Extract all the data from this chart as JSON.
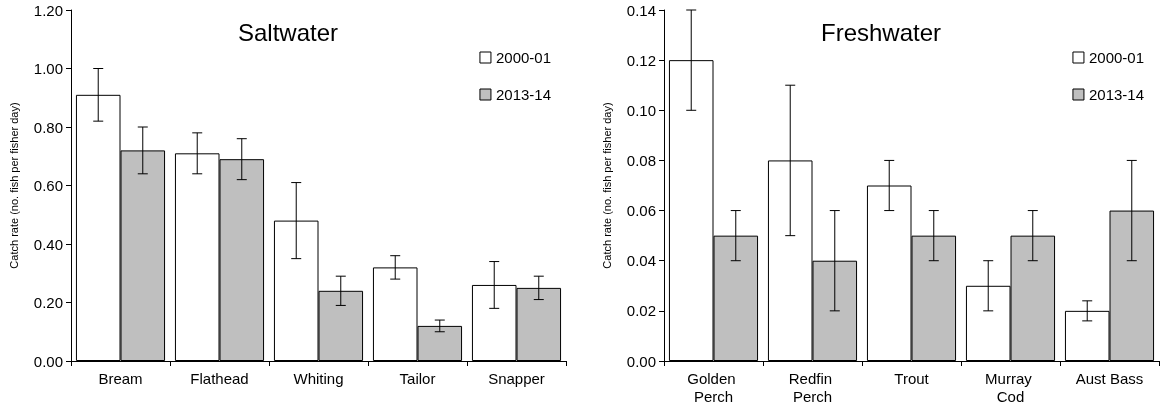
{
  "chart_data": [
    {
      "type": "bar",
      "title": "Saltwater",
      "ylabel": "Catch rate (no. fish per fisher day)",
      "categories": [
        "Bream",
        "Flathead",
        "Whiting",
        "Tailor",
        "Snapper"
      ],
      "series": [
        {
          "name": "2000-01",
          "color": "#ffffff",
          "values": [
            0.91,
            0.71,
            0.48,
            0.32,
            0.26
          ],
          "errors": [
            [
              0.82,
              1.0
            ],
            [
              0.64,
              0.78
            ],
            [
              0.35,
              0.61
            ],
            [
              0.28,
              0.36
            ],
            [
              0.18,
              0.34
            ]
          ]
        },
        {
          "name": "2013-14",
          "color": "#bfbfbf",
          "values": [
            0.72,
            0.69,
            0.24,
            0.12,
            0.25
          ],
          "errors": [
            [
              0.64,
              0.8
            ],
            [
              0.62,
              0.76
            ],
            [
              0.19,
              0.29
            ],
            [
              0.1,
              0.14
            ],
            [
              0.21,
              0.29
            ]
          ]
        }
      ],
      "ylim": [
        0,
        1.2
      ],
      "yticks": [
        {
          "value": 0,
          "label": "0.00"
        },
        {
          "value": 0.2,
          "label": "0.20"
        },
        {
          "value": 0.4,
          "label": "0.40"
        },
        {
          "value": 0.6,
          "label": "0.60"
        },
        {
          "value": 0.8,
          "label": "0.80"
        },
        {
          "value": 1,
          "label": "1.00"
        },
        {
          "value": 1.2,
          "label": "1.20"
        }
      ],
      "legend": "top right",
      "grid": false
    },
    {
      "type": "bar",
      "title": "Freshwater",
      "ylabel": "Catch rate (no. fish per fisher day)",
      "categories": [
        "Golden Perch",
        "Redfin Perch",
        "Trout",
        "Murray Cod",
        "Aust Bass"
      ],
      "series": [
        {
          "name": "2000-01",
          "color": "#ffffff",
          "values": [
            0.12,
            0.08,
            0.07,
            0.03,
            0.02
          ],
          "errors": [
            [
              0.1,
              0.14
            ],
            [
              0.05,
              0.11
            ],
            [
              0.06,
              0.08
            ],
            [
              0.02,
              0.04
            ],
            [
              0.016,
              0.024
            ]
          ]
        },
        {
          "name": "2013-14",
          "color": "#bfbfbf",
          "values": [
            0.05,
            0.04,
            0.05,
            0.05,
            0.06
          ],
          "errors": [
            [
              0.04,
              0.06
            ],
            [
              0.02,
              0.06
            ],
            [
              0.04,
              0.06
            ],
            [
              0.04,
              0.06
            ],
            [
              0.04,
              0.08
            ]
          ]
        }
      ],
      "ylim": [
        0,
        0.14
      ],
      "yticks": [
        {
          "value": 0,
          "label": "0.00"
        },
        {
          "value": 0.02,
          "label": "0.02"
        },
        {
          "value": 0.04,
          "label": "0.04"
        },
        {
          "value": 0.06,
          "label": "0.06"
        },
        {
          "value": 0.08,
          "label": "0.08"
        },
        {
          "value": 0.1,
          "label": "0.10"
        },
        {
          "value": 0.12,
          "label": "0.12"
        },
        {
          "value": 0.14,
          "label": "0.14"
        }
      ],
      "legend": "top right",
      "grid": false
    }
  ]
}
